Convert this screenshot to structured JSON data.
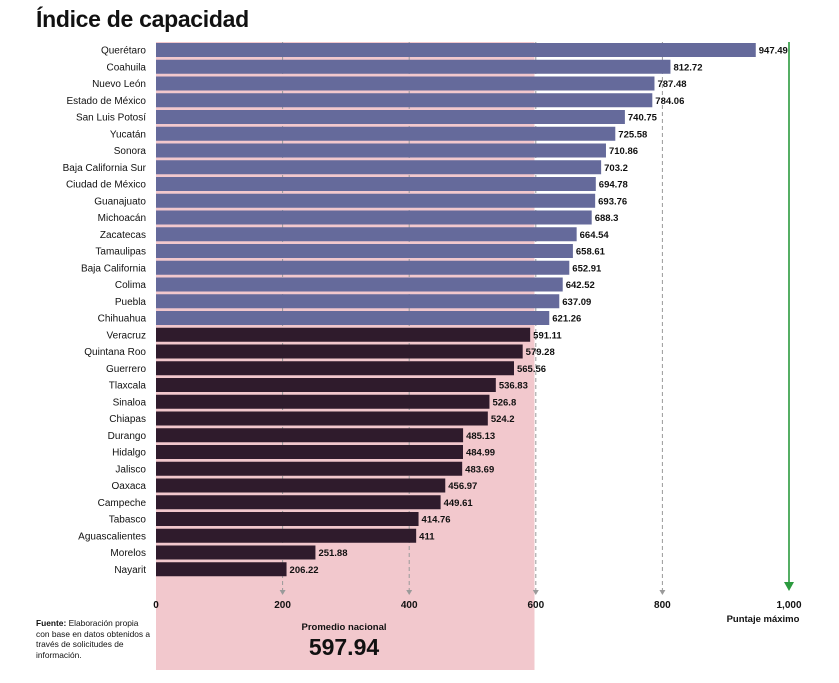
{
  "title": "Índice de capacidad",
  "source": {
    "label": "Fuente:",
    "text": "Elaboración propia con base en datos obtenidos a través de solicitudes de información."
  },
  "average": {
    "label": "Promedio nacional",
    "value": "597.94"
  },
  "max_label": "Puntaje máximo",
  "colors": {
    "above_avg": "#656a9b",
    "below_avg": "#2f1b2c",
    "avg_band": "#f2c8cd",
    "max_arrow": "#2b9a3e",
    "grid": "#9a9a9a"
  },
  "chart_data": {
    "type": "bar",
    "orientation": "horizontal",
    "xlim": [
      0,
      1000
    ],
    "x_ticks": [
      "0",
      "200",
      "400",
      "600",
      "800",
      "1,000"
    ],
    "x_tick_values": [
      0,
      200,
      400,
      600,
      800,
      1000
    ],
    "average_value": 597.94,
    "categories": [
      "Querétaro",
      "Coahuila",
      "Nuevo León",
      "Estado de México",
      "San Luis Potosí",
      "Yucatán",
      "Sonora",
      "Baja California Sur",
      "Ciudad de México",
      "Guanajuato",
      "Michoacán",
      "Zacatecas",
      "Tamaulipas",
      "Baja California",
      "Colima",
      "Puebla",
      "Chihuahua",
      "Veracruz",
      "Quintana Roo",
      "Guerrero",
      "Tlaxcala",
      "Sinaloa",
      "Chiapas",
      "Durango",
      "Hidalgo",
      "Jalisco",
      "Oaxaca",
      "Campeche",
      "Tabasco",
      "Aguascalientes",
      "Morelos",
      "Nayarit"
    ],
    "values": [
      947.49,
      812.72,
      787.48,
      784.06,
      740.75,
      725.58,
      710.86,
      703.2,
      694.78,
      693.76,
      688.3,
      664.54,
      658.61,
      652.91,
      642.52,
      637.09,
      621.26,
      591.11,
      579.28,
      565.56,
      536.83,
      526.8,
      524.2,
      485.13,
      484.99,
      483.69,
      456.97,
      449.61,
      414.76,
      411,
      251.88,
      206.22
    ],
    "value_labels": [
      "947.49",
      "812.72",
      "787.48",
      "784.06",
      "740.75",
      "725.58",
      "710.86",
      "703.2",
      "694.78",
      "693.76",
      "688.3",
      "664.54",
      "658.61",
      "652.91",
      "642.52",
      "637.09",
      "621.26",
      "591.11",
      "579.28",
      "565.56",
      "536.83",
      "526.8",
      "524.2",
      "485.13",
      "484.99",
      "483.69",
      "456.97",
      "449.61",
      "414.76",
      "411",
      "251.88",
      "206.22"
    ]
  }
}
